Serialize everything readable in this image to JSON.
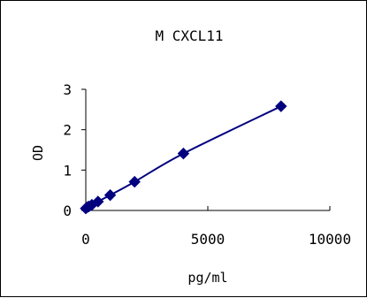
{
  "chart_data": {
    "type": "scatter",
    "title": "M CXCL11",
    "xlabel": "pg/ml",
    "ylabel": "OD",
    "xlim": [
      0,
      10000
    ],
    "ylim": [
      0,
      3
    ],
    "x_ticks": [
      0,
      5000,
      10000
    ],
    "y_ticks": [
      0,
      1,
      2,
      3
    ],
    "x_tick_labels": [
      "0",
      "5000",
      "10000"
    ],
    "y_tick_labels": [
      "0",
      "1",
      "2",
      "3"
    ],
    "grid": false,
    "legend": "none",
    "series": [
      {
        "x": [
          0,
          62.5,
          125,
          250,
          500,
          1000,
          2000,
          4000,
          8000
        ],
        "y": [
          0.05,
          0.08,
          0.1,
          0.14,
          0.22,
          0.38,
          0.71,
          1.41,
          2.58
        ]
      }
    ],
    "marker": "diamond",
    "trendline": "smooth",
    "colors": {
      "series": "#00007f",
      "axis": "#000000",
      "background": "#ffffff"
    }
  }
}
